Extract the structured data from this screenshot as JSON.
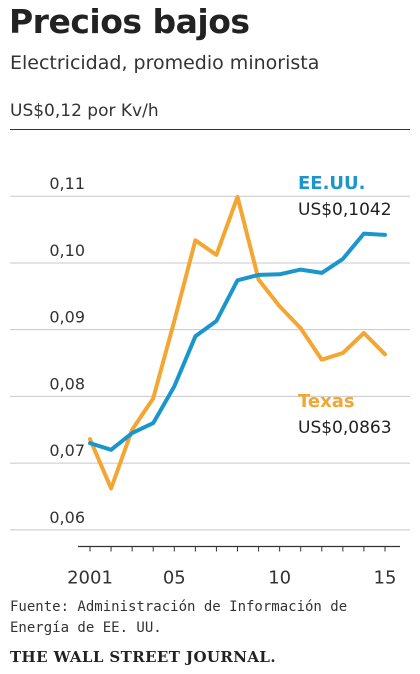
{
  "header": {
    "title": "Precios bajos",
    "subtitle": "Electricidad, promedio minorista",
    "unit_label": "US$0,12 por Kv/h"
  },
  "footer": {
    "source": "Fuente: Administración de Información de Energía de EE. UU.",
    "publisher": "THE WALL STREET JOURNAL."
  },
  "colors": {
    "us": "#1a96cd",
    "texas": "#f3a632",
    "grid": "#c8c8c8",
    "axis": "#333333"
  },
  "chart_data": {
    "type": "line",
    "title": "Precios bajos",
    "subtitle": "Electricidad, promedio minorista",
    "ylabel": "US$0,12 por Kv/h",
    "ylim": [
      0.0575,
      0.12
    ],
    "xlim": [
      2001,
      2015.5
    ],
    "grid": true,
    "y_ticks": [
      0.06,
      0.07,
      0.08,
      0.09,
      0.1,
      0.11
    ],
    "y_tick_labels": [
      "0,06",
      "0,07",
      "0,08",
      "0,09",
      "0,10",
      "0,11"
    ],
    "x_ticks": [
      2001,
      2005,
      2010,
      2015
    ],
    "x_tick_labels": [
      "2001",
      "05",
      "10",
      "15"
    ],
    "x": [
      2001,
      2002,
      2003,
      2004,
      2005,
      2006,
      2007,
      2008,
      2009,
      2010,
      2011,
      2012,
      2013,
      2014,
      2015
    ],
    "series": [
      {
        "name": "EE.UU.",
        "color": "#1a96cd",
        "values": [
          0.073,
          0.072,
          0.0745,
          0.076,
          0.0815,
          0.089,
          0.0913,
          0.0974,
          0.0982,
          0.0983,
          0.099,
          0.0985,
          0.1006,
          0.1044,
          0.1042
        ],
        "label": "EE.UU.",
        "value_label": "US$0,1042"
      },
      {
        "name": "Texas",
        "color": "#f3a632",
        "values": [
          0.0736,
          0.0662,
          0.075,
          0.0797,
          0.0913,
          0.1034,
          0.1012,
          0.1099,
          0.0975,
          0.0935,
          0.0902,
          0.0855,
          0.0865,
          0.0895,
          0.0863
        ],
        "label": "Texas",
        "value_label": "US$0,0863"
      }
    ]
  }
}
